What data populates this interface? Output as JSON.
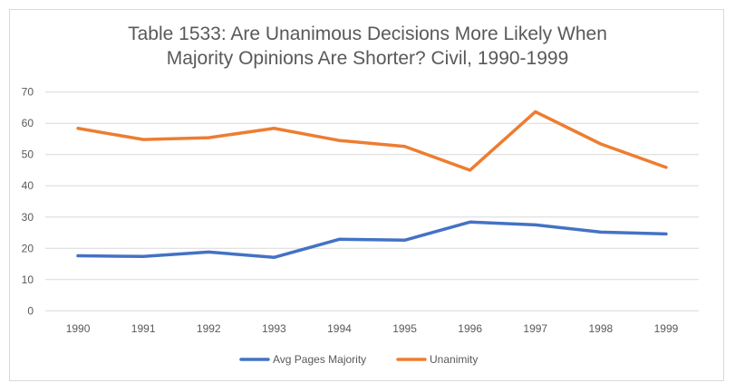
{
  "chart_data": {
    "type": "line",
    "title_lines": [
      "Table 1533: Are Unanimous Decisions More Likely When",
      "Majority Opinions Are Shorter? Civil, 1990-1999"
    ],
    "categories": [
      "1990",
      "1991",
      "1992",
      "1993",
      "1994",
      "1995",
      "1996",
      "1997",
      "1998",
      "1999"
    ],
    "series": [
      {
        "name": "Avg Pages Majority",
        "color": "#4472c4",
        "values": [
          17.6,
          17.4,
          18.8,
          17.1,
          22.9,
          22.6,
          28.4,
          27.5,
          25.2,
          24.6
        ]
      },
      {
        "name": "Unanimity",
        "color": "#ed7d31",
        "values": [
          58.4,
          54.8,
          55.4,
          58.4,
          54.5,
          52.6,
          45.0,
          63.7,
          53.4,
          45.9
        ]
      }
    ],
    "ylim": [
      0,
      70
    ],
    "yticks": [
      "0",
      "10",
      "20",
      "30",
      "40",
      "50",
      "60",
      "70"
    ],
    "grid": true,
    "legend": "bottom"
  }
}
